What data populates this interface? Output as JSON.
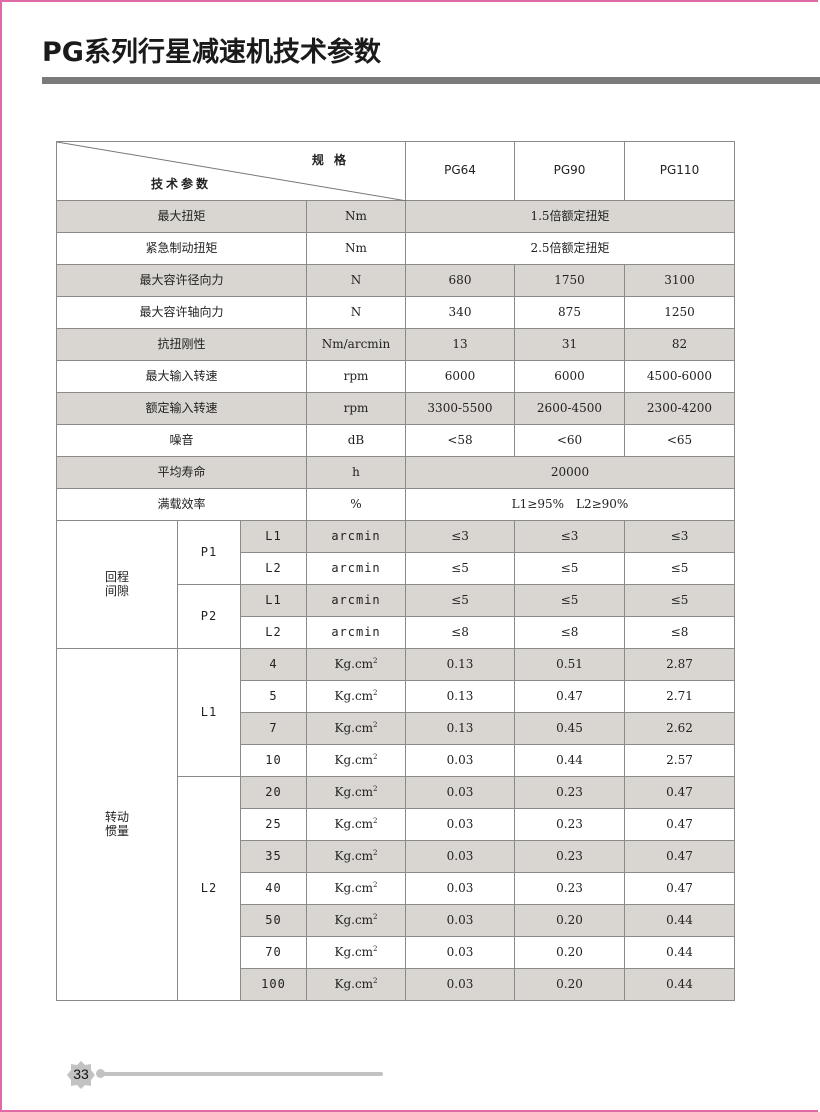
{
  "title": "PG系列行星减速机技术参数",
  "page_number": "33",
  "colors": {
    "row_shade": "#d9d6d1",
    "rule": "#7a7a7c",
    "border": "#e06aa8"
  },
  "header": {
    "spec_label": "规 格",
    "param_label": "技术参数",
    "models": [
      "PG64",
      "PG90",
      "PG110"
    ]
  },
  "simple_rows": [
    {
      "label": "最大扭矩",
      "unit": "Nm",
      "values": [
        "1.5倍额定扭矩"
      ],
      "shaded": true
    },
    {
      "label": "紧急制动扭矩",
      "unit": "Nm",
      "values": [
        "2.5倍额定扭矩"
      ],
      "shaded": false
    },
    {
      "label": "最大容许径向力",
      "unit": "N",
      "values": [
        "680",
        "1750",
        "3100"
      ],
      "shaded": true
    },
    {
      "label": "最大容许轴向力",
      "unit": "N",
      "values": [
        "340",
        "875",
        "1250"
      ],
      "shaded": false
    },
    {
      "label": "抗扭刚性",
      "unit": "Nm/arcmin",
      "values": [
        "13",
        "31",
        "82"
      ],
      "shaded": true
    },
    {
      "label": "最大输入转速",
      "unit": "rpm",
      "values": [
        "6000",
        "6000",
        "4500-6000"
      ],
      "shaded": false
    },
    {
      "label": "额定输入转速",
      "unit": "rpm",
      "values": [
        "3300-5500",
        "2600-4500",
        "2300-4200"
      ],
      "shaded": true
    },
    {
      "label": "噪音",
      "unit": "dB",
      "values": [
        "<58",
        "<60",
        "<65"
      ],
      "shaded": false
    },
    {
      "label": "平均寿命",
      "unit": "h",
      "values": [
        "20000"
      ],
      "shaded": true
    },
    {
      "label": "满载效率",
      "unit": "%",
      "values": [
        "L1≥95%　L2≥90%"
      ],
      "shaded": false
    }
  ],
  "backlash": {
    "label": "回程\n间隙",
    "groups": [
      {
        "label": "P1",
        "rows": [
          {
            "sub": "L1",
            "unit": "arcmin",
            "values": [
              "≤3",
              "≤3",
              "≤3"
            ],
            "shaded": true
          },
          {
            "sub": "L2",
            "unit": "arcmin",
            "values": [
              "≤5",
              "≤5",
              "≤5"
            ],
            "shaded": false
          }
        ]
      },
      {
        "label": "P2",
        "rows": [
          {
            "sub": "L1",
            "unit": "arcmin",
            "values": [
              "≤5",
              "≤5",
              "≤5"
            ],
            "shaded": true
          },
          {
            "sub": "L2",
            "unit": "arcmin",
            "values": [
              "≤8",
              "≤8",
              "≤8"
            ],
            "shaded": false
          }
        ]
      }
    ]
  },
  "inertia": {
    "label": "转动\n惯量",
    "unit": "Kg.cm",
    "unit_sup": "2",
    "groups": [
      {
        "label": "L1",
        "rows": [
          {
            "sub": "4",
            "values": [
              "0.13",
              "0.51",
              "2.87"
            ],
            "shaded": true
          },
          {
            "sub": "5",
            "values": [
              "0.13",
              "0.47",
              "2.71"
            ],
            "shaded": false
          },
          {
            "sub": "7",
            "values": [
              "0.13",
              "0.45",
              "2.62"
            ],
            "shaded": true
          },
          {
            "sub": "10",
            "values": [
              "0.03",
              "0.44",
              "2.57"
            ],
            "shaded": false
          }
        ]
      },
      {
        "label": "L2",
        "rows": [
          {
            "sub": "20",
            "values": [
              "0.03",
              "0.23",
              "0.47"
            ],
            "shaded": true
          },
          {
            "sub": "25",
            "values": [
              "0.03",
              "0.23",
              "0.47"
            ],
            "shaded": false
          },
          {
            "sub": "35",
            "values": [
              "0.03",
              "0.23",
              "0.47"
            ],
            "shaded": true
          },
          {
            "sub": "40",
            "values": [
              "0.03",
              "0.23",
              "0.47"
            ],
            "shaded": false
          },
          {
            "sub": "50",
            "values": [
              "0.03",
              "0.20",
              "0.44"
            ],
            "shaded": true
          },
          {
            "sub": "70",
            "values": [
              "0.03",
              "0.20",
              "0.44"
            ],
            "shaded": false
          },
          {
            "sub": "100",
            "values": [
              "0.03",
              "0.20",
              "0.44"
            ],
            "shaded": true
          }
        ]
      }
    ]
  }
}
